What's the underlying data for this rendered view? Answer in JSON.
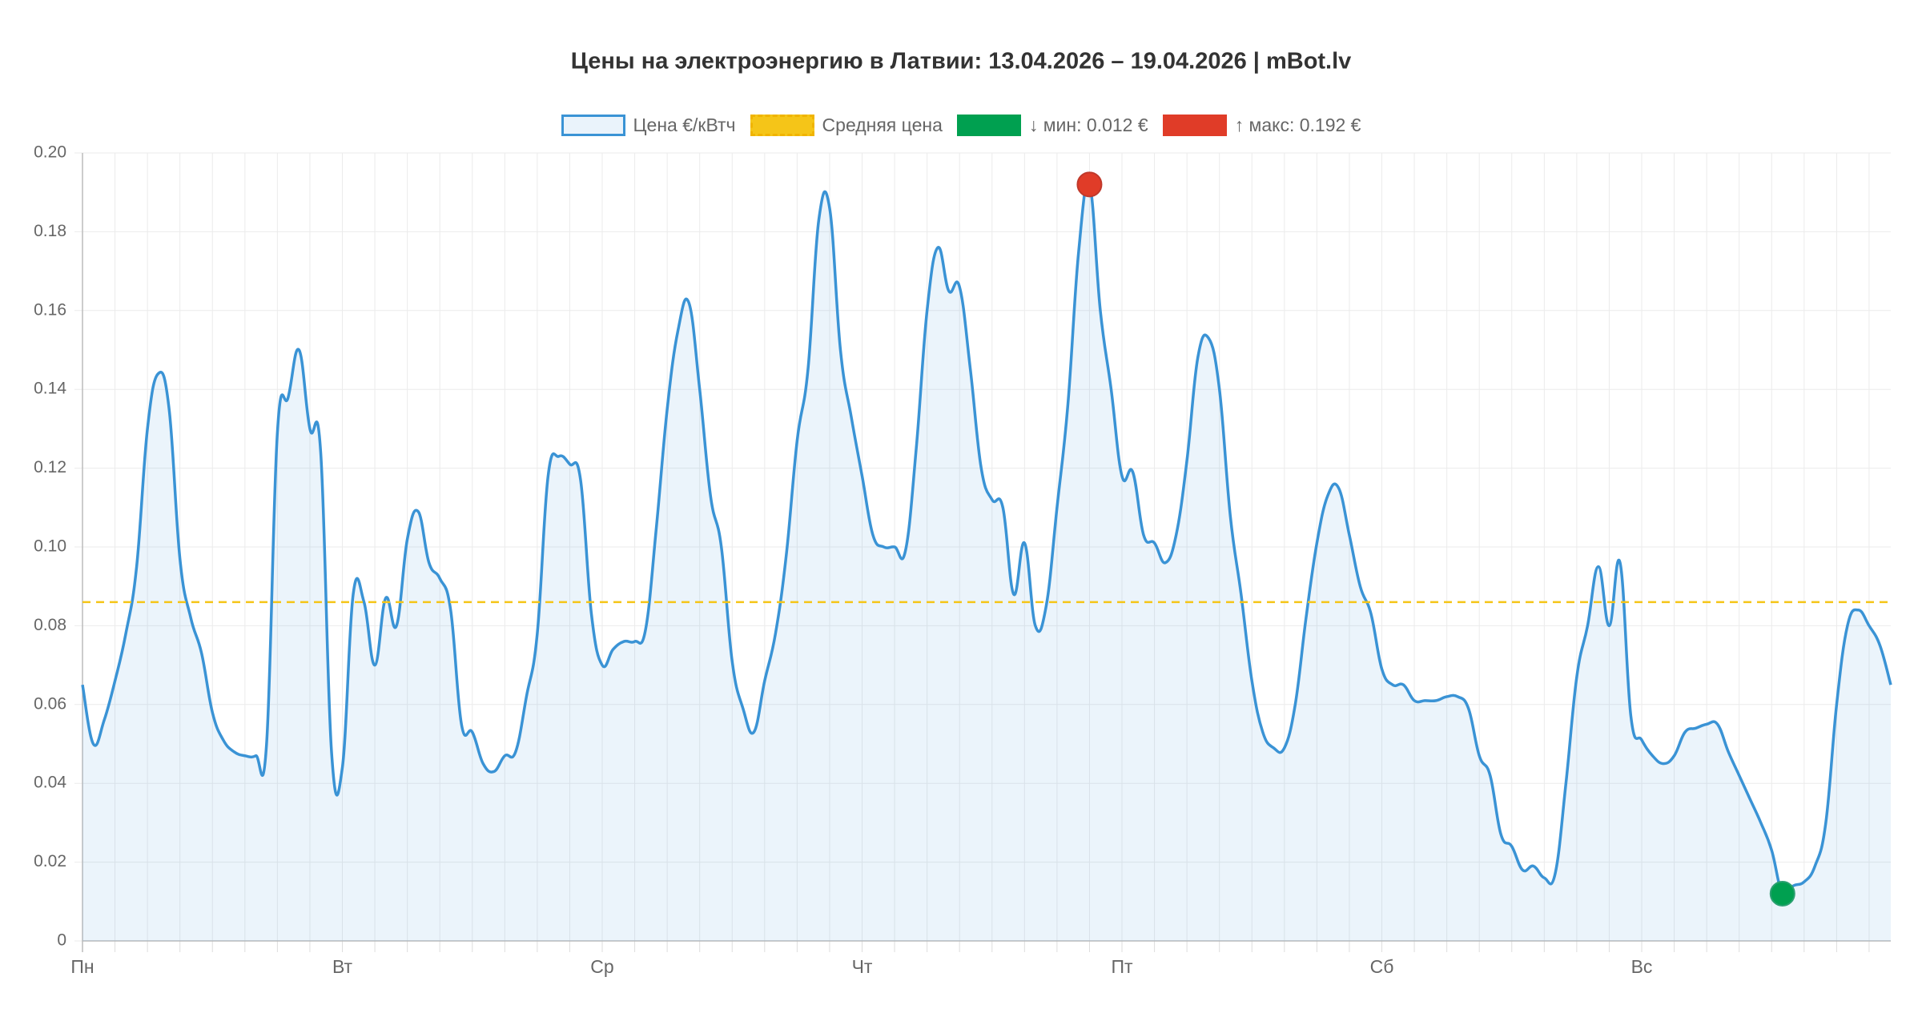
{
  "chart_data": {
    "type": "line",
    "title": "Цены на электроэнергию в Латвии: 13.04.2026 – 19.04.2026 | mBot.lv",
    "categories": [
      "Пн",
      null,
      null,
      null,
      null,
      null,
      null,
      null,
      null,
      null,
      null,
      null,
      null,
      null,
      null,
      null,
      null,
      null,
      null,
      null,
      null,
      null,
      null,
      null,
      "Вт",
      null,
      null,
      null,
      null,
      null,
      null,
      null,
      null,
      null,
      null,
      null,
      null,
      null,
      null,
      null,
      null,
      null,
      null,
      null,
      null,
      null,
      null,
      null,
      "Ср",
      null,
      null,
      null,
      null,
      null,
      null,
      null,
      null,
      null,
      null,
      null,
      null,
      null,
      null,
      null,
      null,
      null,
      null,
      null,
      null,
      null,
      null,
      null,
      "Чт",
      null,
      null,
      null,
      null,
      null,
      null,
      null,
      null,
      null,
      null,
      null,
      null,
      null,
      null,
      null,
      null,
      null,
      null,
      null,
      null,
      null,
      null,
      null,
      "Пт",
      null,
      null,
      null,
      null,
      null,
      null,
      null,
      null,
      null,
      null,
      null,
      null,
      null,
      null,
      null,
      null,
      null,
      null,
      null,
      null,
      null,
      null,
      null,
      "Сб",
      null,
      null,
      null,
      null,
      null,
      null,
      null,
      null,
      null,
      null,
      null,
      null,
      null,
      null,
      null,
      null,
      null,
      null,
      null,
      null,
      null,
      null,
      null,
      "Вс",
      null,
      null,
      null,
      null,
      null,
      null,
      null,
      null,
      null,
      null,
      null,
      null,
      null,
      null,
      null,
      null,
      null,
      null,
      null,
      null,
      null,
      null,
      null
    ],
    "series": [
      {
        "name": "Цена €/кВтч",
        "color": "#3a93d5",
        "values": [
          0.065,
          0.05,
          0.056,
          0.066,
          0.078,
          0.095,
          0.13,
          0.144,
          0.135,
          0.097,
          0.082,
          0.073,
          0.058,
          0.051,
          0.048,
          0.047,
          0.047,
          0.05,
          0.129,
          0.138,
          0.15,
          0.13,
          0.124,
          0.048,
          0.044,
          0.088,
          0.086,
          0.07,
          0.087,
          0.08,
          0.102,
          0.109,
          0.096,
          0.092,
          0.084,
          0.055,
          0.053,
          0.045,
          0.043,
          0.047,
          0.048,
          0.062,
          0.078,
          0.118,
          0.123,
          0.121,
          0.117,
          0.083,
          0.07,
          0.074,
          0.076,
          0.076,
          0.079,
          0.105,
          0.135,
          0.155,
          0.162,
          0.14,
          0.113,
          0.1,
          0.071,
          0.059,
          0.053,
          0.066,
          0.078,
          0.098,
          0.127,
          0.145,
          0.183,
          0.186,
          0.15,
          0.133,
          0.118,
          0.103,
          0.1,
          0.1,
          0.099,
          0.125,
          0.16,
          0.176,
          0.165,
          0.166,
          0.145,
          0.12,
          0.112,
          0.11,
          0.088,
          0.101,
          0.08,
          0.085,
          0.11,
          0.136,
          0.175,
          0.192,
          0.16,
          0.14,
          0.118,
          0.119,
          0.103,
          0.101,
          0.096,
          0.103,
          0.122,
          0.148,
          0.153,
          0.14,
          0.108,
          0.088,
          0.066,
          0.053,
          0.049,
          0.049,
          0.06,
          0.082,
          0.101,
          0.113,
          0.115,
          0.103,
          0.09,
          0.083,
          0.069,
          0.065,
          0.065,
          0.061,
          0.061,
          0.061,
          0.062,
          0.062,
          0.059,
          0.047,
          0.042,
          0.027,
          0.024,
          0.018,
          0.019,
          0.016,
          0.017,
          0.04,
          0.067,
          0.08,
          0.095,
          0.08,
          0.096,
          0.057,
          0.051,
          0.047,
          0.045,
          0.047,
          0.053,
          0.054,
          0.055,
          0.055,
          0.048,
          0.042,
          0.036,
          0.03,
          0.023,
          0.012,
          0.014,
          0.015,
          0.019,
          0.03,
          0.06,
          0.08,
          0.084,
          0.08,
          0.075,
          0.065
        ]
      },
      {
        "name": "Средняя цена",
        "color": "#f5c518",
        "value": 0.086
      },
      {
        "name": "↓ мин: 0.012 €",
        "color": "#00a050",
        "value": 0.012
      },
      {
        "name": "↑ макс: 0.192 €",
        "color": "#e03c28",
        "value": 0.192
      }
    ],
    "ylim": [
      0,
      0.2
    ],
    "yticks": [
      0,
      0.02,
      0.04,
      0.06,
      0.08,
      {
        "value": 0.1,
        "label": "0.10"
      },
      0.12,
      0.14,
      0.16,
      0.18,
      {
        "value": 0.2,
        "label": "0.20"
      }
    ],
    "grid": true
  }
}
